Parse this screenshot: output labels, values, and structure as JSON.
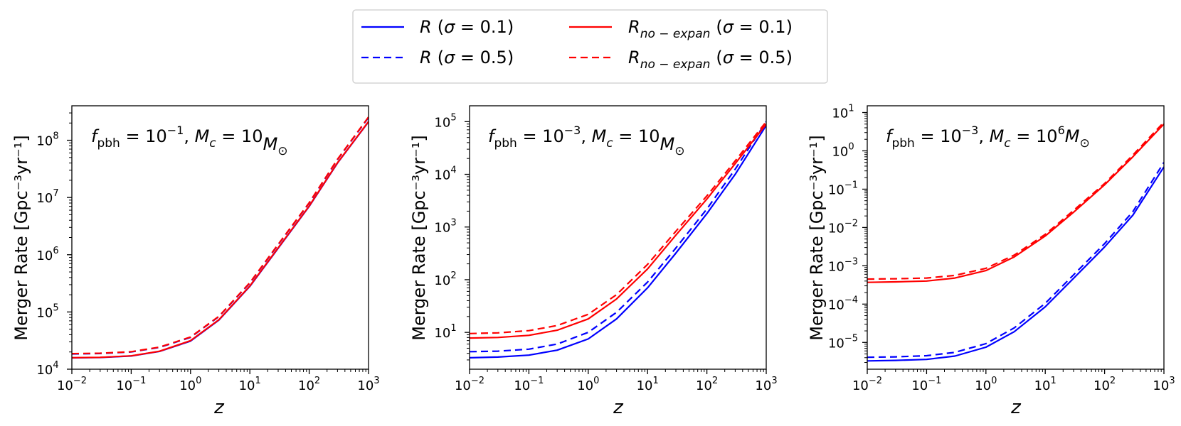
{
  "legend": {
    "location": "upper-center",
    "columns": 2,
    "entries": [
      {
        "series_key": "R_0.1",
        "prefix": "R",
        "sub": "",
        "sigma": "0.1",
        "color": "#0000ff",
        "dash": "solid"
      },
      {
        "series_key": "R_0.5",
        "prefix": "R",
        "sub": "",
        "sigma": "0.5",
        "color": "#0000ff",
        "dash": "dashed"
      },
      {
        "series_key": "Rno_0.1",
        "prefix": "R",
        "sub": "no − expan",
        "sigma": "0.1",
        "color": "#ff0000",
        "dash": "solid"
      },
      {
        "series_key": "Rno_0.5",
        "prefix": "R",
        "sub": "no − expan",
        "sigma": "0.5",
        "color": "#ff0000",
        "dash": "dashed"
      }
    ]
  },
  "chart_data": [
    {
      "type": "line",
      "annotation": {
        "fexp": "−1",
        "mc_base": "10",
        "mc_exp": ""
      },
      "xlabel": "z",
      "ylabel": "Merger Rate [Gpc⁻³yr⁻¹]",
      "xscale": "log",
      "yscale": "log",
      "xlim": [
        0.01,
        1000
      ],
      "ylim": [
        10000,
        400000000
      ],
      "xticks": [
        {
          "base": "10",
          "exp": "−2",
          "value": 0.01
        },
        {
          "base": "10",
          "exp": "−1",
          "value": 0.1
        },
        {
          "base": "10",
          "exp": "0",
          "value": 1
        },
        {
          "base": "10",
          "exp": "1",
          "value": 10
        },
        {
          "base": "10",
          "exp": "2",
          "value": 100
        },
        {
          "base": "10",
          "exp": "3",
          "value": 1000
        }
      ],
      "yticks": [
        {
          "base": "10",
          "exp": "4",
          "value": 10000
        },
        {
          "base": "10",
          "exp": "5",
          "value": 100000
        },
        {
          "base": "10",
          "exp": "6",
          "value": 1000000
        },
        {
          "base": "10",
          "exp": "7",
          "value": 10000000
        },
        {
          "base": "10",
          "exp": "8",
          "value": 100000000
        }
      ],
      "x": [
        0.01,
        0.03,
        0.1,
        0.3,
        1,
        3,
        10,
        30,
        100,
        300,
        1000
      ],
      "series": [
        {
          "key": "R_0.1",
          "values": [
            15800,
            16000,
            17000,
            20500,
            31000,
            72000,
            280000,
            1300000,
            7000000,
            40000000,
            210000000
          ]
        },
        {
          "key": "R_0.5",
          "values": [
            18500,
            18800,
            20000,
            24000,
            36000,
            83000,
            320000,
            1500000,
            8000000,
            46000000,
            250000000
          ]
        },
        {
          "key": "Rno_0.1",
          "values": [
            15900,
            16100,
            17100,
            20600,
            31500,
            73000,
            285000,
            1320000,
            7100000,
            40500000,
            212000000
          ]
        },
        {
          "key": "Rno_0.5",
          "values": [
            18700,
            19000,
            20200,
            24300,
            36500,
            84000,
            325000,
            1520000,
            8100000,
            46500000,
            255000000
          ]
        }
      ]
    },
    {
      "type": "line",
      "annotation": {
        "fexp": "−3",
        "mc_base": "10",
        "mc_exp": ""
      },
      "xlabel": "z",
      "ylabel": "Merger Rate [Gpc⁻³yr⁻¹]",
      "xscale": "log",
      "yscale": "log",
      "xlim": [
        0.01,
        1000
      ],
      "ylim": [
        2,
        200000
      ],
      "xticks": [
        {
          "base": "10",
          "exp": "−2",
          "value": 0.01
        },
        {
          "base": "10",
          "exp": "−1",
          "value": 0.1
        },
        {
          "base": "10",
          "exp": "0",
          "value": 1
        },
        {
          "base": "10",
          "exp": "1",
          "value": 10
        },
        {
          "base": "10",
          "exp": "2",
          "value": 100
        },
        {
          "base": "10",
          "exp": "3",
          "value": 1000
        }
      ],
      "yticks": [
        {
          "base": "10",
          "exp": "1",
          "value": 10
        },
        {
          "base": "10",
          "exp": "2",
          "value": 100
        },
        {
          "base": "10",
          "exp": "3",
          "value": 1000
        },
        {
          "base": "10",
          "exp": "4",
          "value": 10000
        },
        {
          "base": "10",
          "exp": "5",
          "value": 100000
        }
      ],
      "x": [
        0.01,
        0.03,
        0.1,
        0.3,
        1,
        3,
        10,
        30,
        100,
        300,
        1000
      ],
      "series": [
        {
          "key": "R_0.1",
          "values": [
            3.3,
            3.4,
            3.7,
            4.6,
            7.5,
            18,
            70,
            320,
            1800,
            10000,
            85000
          ]
        },
        {
          "key": "R_0.5",
          "values": [
            4.3,
            4.4,
            4.8,
            6.0,
            10,
            24,
            90,
            400,
            2200,
            12500,
            100000
          ]
        },
        {
          "key": "Rno_0.1",
          "values": [
            7.8,
            8.0,
            8.8,
            11,
            18,
            43,
            160,
            700,
            3400,
            16000,
            90000
          ]
        },
        {
          "key": "Rno_0.5",
          "values": [
            9.5,
            9.8,
            10.8,
            13.5,
            22,
            52,
            195,
            830,
            3900,
            18000,
            100000
          ]
        }
      ]
    },
    {
      "type": "line",
      "annotation": {
        "fexp": "−3",
        "mc_base": "10",
        "mc_exp": "6"
      },
      "xlabel": "z",
      "ylabel": "Merger Rate [Gpc⁻³yr⁻¹]",
      "xscale": "log",
      "yscale": "log",
      "xlim": [
        0.01,
        1000
      ],
      "ylim": [
        2e-06,
        15
      ],
      "xticks": [
        {
          "base": "10",
          "exp": "−2",
          "value": 0.01
        },
        {
          "base": "10",
          "exp": "−1",
          "value": 0.1
        },
        {
          "base": "10",
          "exp": "0",
          "value": 1
        },
        {
          "base": "10",
          "exp": "1",
          "value": 10
        },
        {
          "base": "10",
          "exp": "2",
          "value": 100
        },
        {
          "base": "10",
          "exp": "3",
          "value": 1000
        }
      ],
      "yticks": [
        {
          "base": "10",
          "exp": "−5",
          "value": 1e-05
        },
        {
          "base": "10",
          "exp": "−4",
          "value": 0.0001
        },
        {
          "base": "10",
          "exp": "−3",
          "value": 0.001
        },
        {
          "base": "10",
          "exp": "−2",
          "value": 0.01
        },
        {
          "base": "10",
          "exp": "−1",
          "value": 0.1
        },
        {
          "base": "10",
          "exp": "0",
          "value": 1
        },
        {
          "base": "10",
          "exp": "1",
          "value": 10
        }
      ],
      "x": [
        0.01,
        0.03,
        0.1,
        0.3,
        1,
        3,
        10,
        30,
        100,
        300,
        1000
      ],
      "series": [
        {
          "key": "R_0.1",
          "values": [
            3.3e-06,
            3.4e-06,
            3.6e-06,
            4.4e-06,
            7.5e-06,
            1.9e-05,
            8.5e-05,
            0.00047,
            0.0031,
            0.021,
            0.38
          ]
        },
        {
          "key": "R_0.5",
          "values": [
            4.1e-06,
            4.2e-06,
            4.5e-06,
            5.5e-06,
            9.3e-06,
            2.4e-05,
            0.000105,
            0.00058,
            0.0038,
            0.026,
            0.5
          ]
        },
        {
          "key": "Rno_0.1",
          "values": [
            0.00037,
            0.00038,
            0.0004,
            0.00048,
            0.00075,
            0.0017,
            0.006,
            0.025,
            0.13,
            0.7,
            5.0
          ]
        },
        {
          "key": "Rno_0.5",
          "values": [
            0.00045,
            0.00046,
            0.00048,
            0.00056,
            0.00086,
            0.0019,
            0.0066,
            0.028,
            0.14,
            0.78,
            5.6
          ]
        }
      ]
    }
  ]
}
